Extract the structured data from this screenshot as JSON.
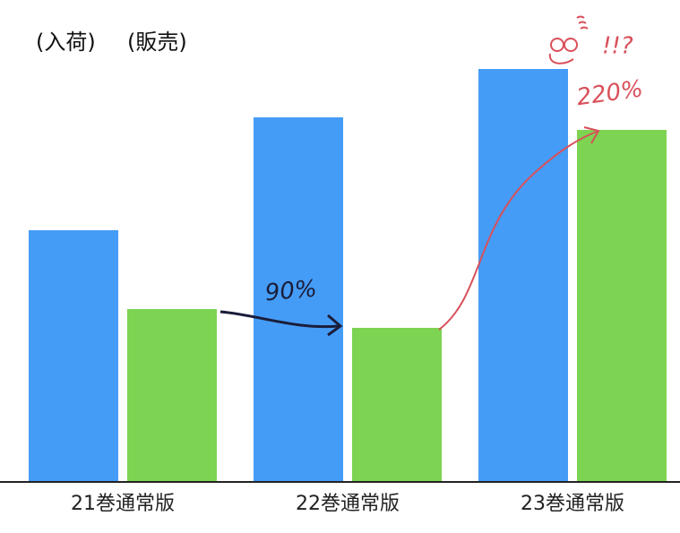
{
  "chart_data": {
    "type": "bar",
    "categories": [
      "21巻通常版",
      "22巻通常版",
      "23巻通常版"
    ],
    "series": [
      {
        "name": "(入荷)",
        "color": "#459cf6",
        "values": [
          281,
          407,
          461
        ]
      },
      {
        "name": "(販売)",
        "color": "#7dd352",
        "values": [
          193,
          172,
          393
        ]
      }
    ],
    "ylim": [
      0,
      500
    ],
    "annotations": [
      "90%",
      "220%",
      "!!?"
    ]
  }
}
